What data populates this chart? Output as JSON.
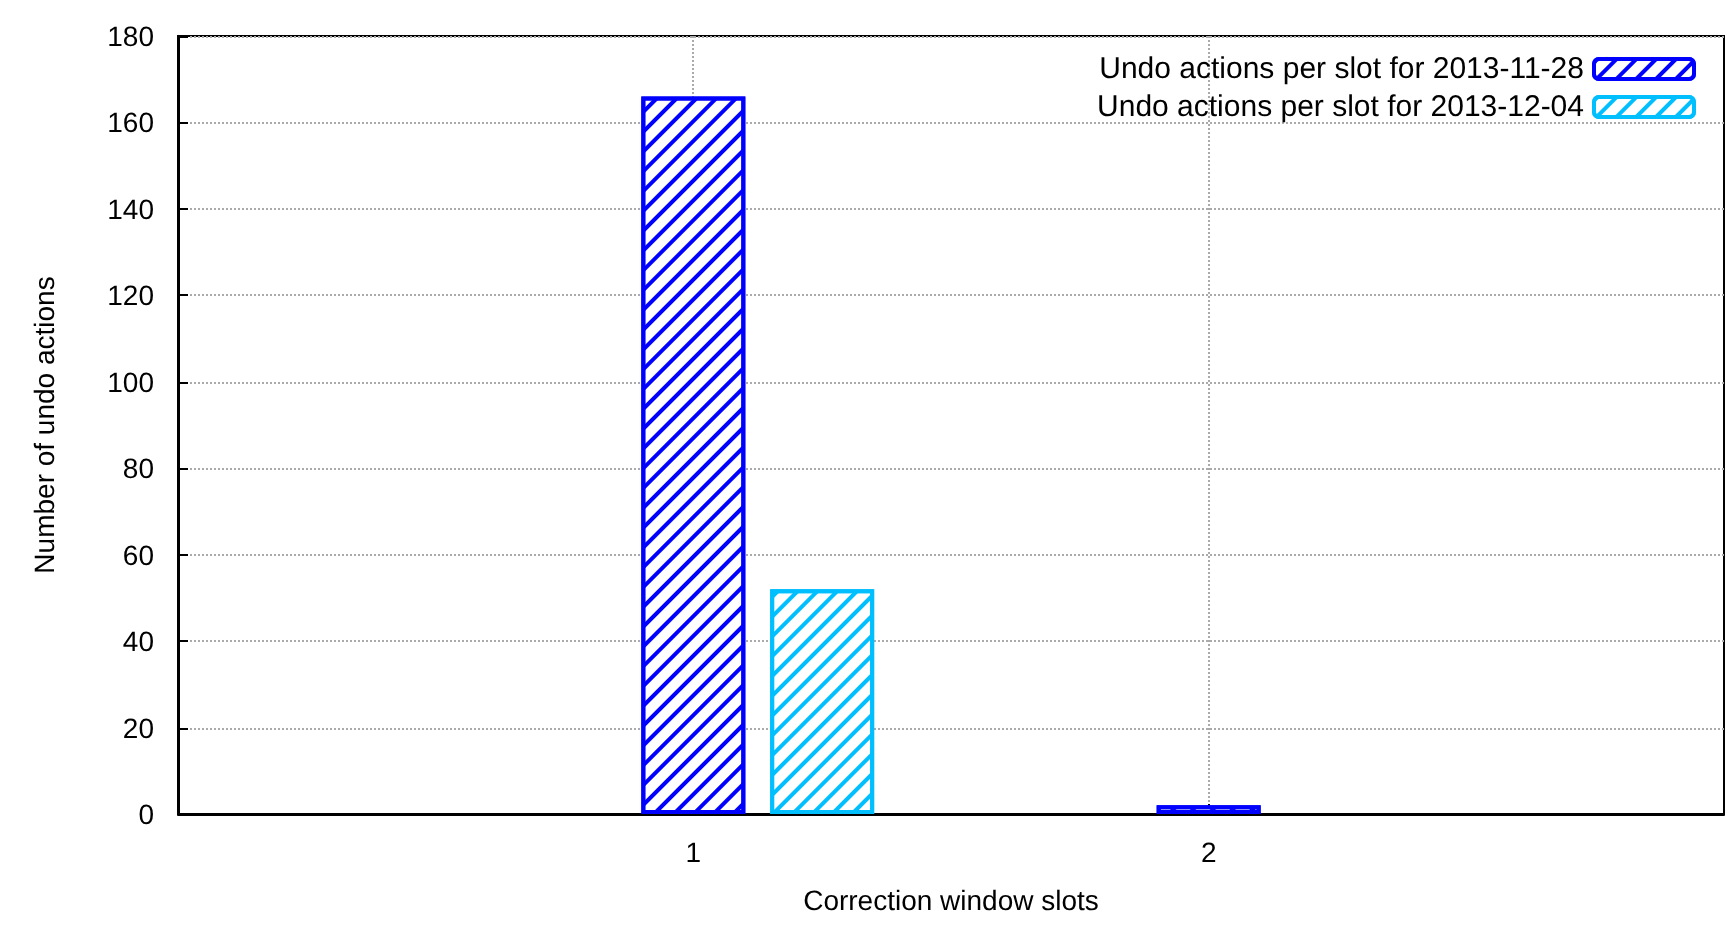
{
  "chart_data": {
    "type": "bar",
    "xlabel": "Correction window slots",
    "ylabel": "Number of undo actions",
    "xlim": [
      0,
      3
    ],
    "xticks": [
      1,
      2
    ],
    "ylim": [
      0,
      180
    ],
    "yticks": [
      0,
      20,
      40,
      60,
      80,
      100,
      120,
      140,
      160,
      180
    ],
    "series": [
      {
        "name": "Undo actions per slot for 2013-11-28",
        "color": "#0000ff",
        "x": [
          1,
          2
        ],
        "values": [
          166,
          2
        ]
      },
      {
        "name": "Undo actions per slot for 2013-12-04",
        "color": "#00bfff",
        "x": [
          1.25
        ],
        "values": [
          52
        ]
      }
    ],
    "grid": true,
    "legend": "top right"
  }
}
